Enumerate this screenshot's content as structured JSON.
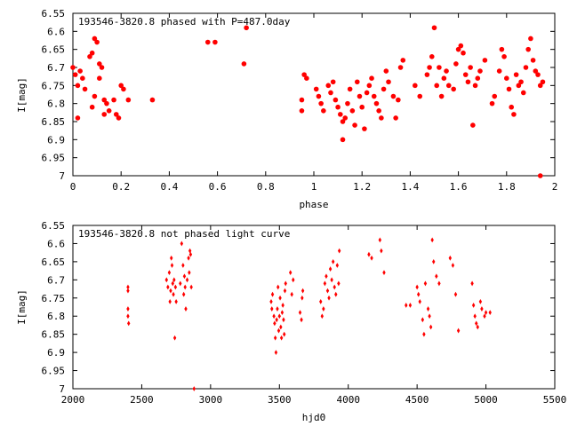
{
  "chart_data": [
    {
      "type": "scatter",
      "title": "193546-3820.8 phased with P=487.0day",
      "xlabel": "phase",
      "ylabel": "I[mag]",
      "xlim": [
        0,
        2
      ],
      "ylim": [
        6.55,
        7
      ],
      "y_inverted": true,
      "grid": false,
      "marker_color": "#ff0000",
      "x_ticks": [
        0,
        0.2,
        0.4,
        0.6,
        0.8,
        1,
        1.2,
        1.4,
        1.6,
        1.8,
        2
      ],
      "y_ticks": [
        6.55,
        6.6,
        6.65,
        6.7,
        6.75,
        6.8,
        6.85,
        6.9,
        6.95,
        7
      ],
      "series": [
        {
          "values": [
            [
              0.0,
              6.7
            ],
            [
              0.01,
              6.72
            ],
            [
              0.02,
              6.75
            ],
            [
              0.02,
              6.84
            ],
            [
              0.03,
              6.71
            ],
            [
              0.04,
              6.73
            ],
            [
              0.05,
              6.76
            ],
            [
              0.07,
              6.67
            ],
            [
              0.08,
              6.66
            ],
            [
              0.08,
              6.81
            ],
            [
              0.09,
              6.62
            ],
            [
              0.09,
              6.78
            ],
            [
              0.1,
              6.63
            ],
            [
              0.11,
              6.73
            ],
            [
              0.11,
              6.69
            ],
            [
              0.12,
              6.7
            ],
            [
              0.13,
              6.79
            ],
            [
              0.13,
              6.83
            ],
            [
              0.14,
              6.8
            ],
            [
              0.15,
              6.82
            ],
            [
              0.17,
              6.79
            ],
            [
              0.18,
              6.83
            ],
            [
              0.19,
              6.84
            ],
            [
              0.2,
              6.75
            ],
            [
              0.21,
              6.76
            ],
            [
              0.23,
              6.79
            ],
            [
              0.33,
              6.79
            ],
            [
              0.56,
              6.63
            ],
            [
              0.59,
              6.63
            ],
            [
              0.71,
              6.69
            ],
            [
              0.72,
              6.59
            ],
            [
              0.95,
              6.79
            ],
            [
              0.95,
              6.82
            ],
            [
              0.96,
              6.72
            ],
            [
              0.97,
              6.73
            ],
            [
              1.01,
              6.76
            ],
            [
              1.02,
              6.78
            ],
            [
              1.03,
              6.8
            ],
            [
              1.04,
              6.82
            ],
            [
              1.06,
              6.75
            ],
            [
              1.07,
              6.77
            ],
            [
              1.08,
              6.74
            ],
            [
              1.09,
              6.79
            ],
            [
              1.1,
              6.81
            ],
            [
              1.11,
              6.83
            ],
            [
              1.12,
              6.85
            ],
            [
              1.12,
              6.9
            ],
            [
              1.13,
              6.84
            ],
            [
              1.14,
              6.8
            ],
            [
              1.15,
              6.76
            ],
            [
              1.16,
              6.82
            ],
            [
              1.17,
              6.86
            ],
            [
              1.18,
              6.74
            ],
            [
              1.19,
              6.78
            ],
            [
              1.2,
              6.81
            ],
            [
              1.21,
              6.87
            ],
            [
              1.22,
              6.77
            ],
            [
              1.23,
              6.75
            ],
            [
              1.24,
              6.73
            ],
            [
              1.25,
              6.78
            ],
            [
              1.26,
              6.8
            ],
            [
              1.27,
              6.82
            ],
            [
              1.28,
              6.84
            ],
            [
              1.29,
              6.76
            ],
            [
              1.3,
              6.71
            ],
            [
              1.31,
              6.74
            ],
            [
              1.33,
              6.78
            ],
            [
              1.34,
              6.84
            ],
            [
              1.35,
              6.79
            ],
            [
              1.36,
              6.7
            ],
            [
              1.37,
              6.68
            ],
            [
              1.42,
              6.75
            ],
            [
              1.44,
              6.78
            ],
            [
              1.47,
              6.72
            ],
            [
              1.48,
              6.7
            ],
            [
              1.49,
              6.67
            ],
            [
              1.5,
              6.59
            ],
            [
              1.51,
              6.75
            ],
            [
              1.52,
              6.7
            ],
            [
              1.53,
              6.78
            ],
            [
              1.54,
              6.73
            ],
            [
              1.55,
              6.71
            ],
            [
              1.56,
              6.75
            ],
            [
              1.58,
              6.76
            ],
            [
              1.59,
              6.69
            ],
            [
              1.6,
              6.65
            ],
            [
              1.61,
              6.64
            ],
            [
              1.62,
              6.66
            ],
            [
              1.63,
              6.72
            ],
            [
              1.64,
              6.74
            ],
            [
              1.65,
              6.7
            ],
            [
              1.66,
              6.86
            ],
            [
              1.67,
              6.75
            ],
            [
              1.68,
              6.73
            ],
            [
              1.69,
              6.71
            ],
            [
              1.71,
              6.68
            ],
            [
              1.74,
              6.8
            ],
            [
              1.75,
              6.78
            ],
            [
              1.77,
              6.71
            ],
            [
              1.78,
              6.65
            ],
            [
              1.79,
              6.67
            ],
            [
              1.8,
              6.73
            ],
            [
              1.81,
              6.76
            ],
            [
              1.82,
              6.81
            ],
            [
              1.83,
              6.83
            ],
            [
              1.84,
              6.72
            ],
            [
              1.85,
              6.75
            ],
            [
              1.86,
              6.74
            ],
            [
              1.87,
              6.77
            ],
            [
              1.88,
              6.7
            ],
            [
              1.89,
              6.65
            ],
            [
              1.9,
              6.62
            ],
            [
              1.91,
              6.68
            ],
            [
              1.92,
              6.71
            ],
            [
              1.93,
              6.72
            ],
            [
              1.94,
              6.75
            ],
            [
              1.95,
              6.74
            ],
            [
              1.94,
              7.0
            ]
          ]
        }
      ]
    },
    {
      "type": "scatter",
      "title": "193546-3820.8 not phased light curve",
      "xlabel": "hjd0",
      "ylabel": "I[mag]",
      "xlim": [
        2000,
        5500
      ],
      "ylim": [
        6.55,
        7
      ],
      "y_inverted": true,
      "grid": false,
      "marker_color": "#ff0000",
      "x_ticks": [
        2000,
        2500,
        3000,
        3500,
        4000,
        4500,
        5000,
        5500
      ],
      "y_ticks": [
        6.55,
        6.6,
        6.65,
        6.7,
        6.75,
        6.8,
        6.85,
        6.9,
        6.95,
        7
      ],
      "series": [
        {
          "values": [
            [
              2400,
              6.72
            ],
            [
              2400,
              6.73
            ],
            [
              2400,
              6.78
            ],
            [
              2400,
              6.8
            ],
            [
              2405,
              6.82
            ],
            [
              2680,
              6.7
            ],
            [
              2690,
              6.72
            ],
            [
              2700,
              6.68
            ],
            [
              2705,
              6.76
            ],
            [
              2710,
              6.73
            ],
            [
              2715,
              6.64
            ],
            [
              2720,
              6.66
            ],
            [
              2725,
              6.71
            ],
            [
              2730,
              6.74
            ],
            [
              2735,
              6.7
            ],
            [
              2740,
              6.86
            ],
            [
              2745,
              6.72
            ],
            [
              2750,
              6.76
            ],
            [
              2780,
              6.71
            ],
            [
              2790,
              6.6
            ],
            [
              2800,
              6.66
            ],
            [
              2805,
              6.74
            ],
            [
              2810,
              6.69
            ],
            [
              2815,
              6.72
            ],
            [
              2820,
              6.78
            ],
            [
              2830,
              6.7
            ],
            [
              2840,
              6.64
            ],
            [
              2845,
              6.68
            ],
            [
              2850,
              6.62
            ],
            [
              2855,
              6.63
            ],
            [
              2860,
              6.72
            ],
            [
              2880,
              7.0
            ],
            [
              3440,
              6.76
            ],
            [
              3445,
              6.78
            ],
            [
              3450,
              6.74
            ],
            [
              3460,
              6.8
            ],
            [
              3465,
              6.82
            ],
            [
              3470,
              6.86
            ],
            [
              3475,
              6.9
            ],
            [
              3480,
              6.81
            ],
            [
              3485,
              6.78
            ],
            [
              3490,
              6.72
            ],
            [
              3495,
              6.84
            ],
            [
              3500,
              6.8
            ],
            [
              3505,
              6.75
            ],
            [
              3510,
              6.83
            ],
            [
              3515,
              6.86
            ],
            [
              3520,
              6.79
            ],
            [
              3525,
              6.77
            ],
            [
              3530,
              6.81
            ],
            [
              3535,
              6.85
            ],
            [
              3540,
              6.73
            ],
            [
              3545,
              6.71
            ],
            [
              3580,
              6.68
            ],
            [
              3590,
              6.74
            ],
            [
              3600,
              6.7
            ],
            [
              3650,
              6.79
            ],
            [
              3660,
              6.81
            ],
            [
              3665,
              6.75
            ],
            [
              3670,
              6.73
            ],
            [
              3800,
              6.76
            ],
            [
              3810,
              6.8
            ],
            [
              3820,
              6.78
            ],
            [
              3830,
              6.71
            ],
            [
              3840,
              6.69
            ],
            [
              3850,
              6.73
            ],
            [
              3860,
              6.75
            ],
            [
              3870,
              6.67
            ],
            [
              3880,
              6.7
            ],
            [
              3890,
              6.65
            ],
            [
              3900,
              6.72
            ],
            [
              3910,
              6.74
            ],
            [
              3920,
              6.66
            ],
            [
              3930,
              6.71
            ],
            [
              3935,
              6.62
            ],
            [
              4150,
              6.63
            ],
            [
              4170,
              6.64
            ],
            [
              4230,
              6.59
            ],
            [
              4240,
              6.62
            ],
            [
              4260,
              6.68
            ],
            [
              4420,
              6.77
            ],
            [
              4450,
              6.77
            ],
            [
              4500,
              6.72
            ],
            [
              4510,
              6.74
            ],
            [
              4520,
              6.76
            ],
            [
              4540,
              6.81
            ],
            [
              4550,
              6.85
            ],
            [
              4560,
              6.71
            ],
            [
              4580,
              6.78
            ],
            [
              4590,
              6.8
            ],
            [
              4600,
              6.83
            ],
            [
              4610,
              6.59
            ],
            [
              4620,
              6.65
            ],
            [
              4640,
              6.69
            ],
            [
              4660,
              6.71
            ],
            [
              4740,
              6.64
            ],
            [
              4760,
              6.66
            ],
            [
              4780,
              6.74
            ],
            [
              4800,
              6.84
            ],
            [
              4900,
              6.71
            ],
            [
              4910,
              6.77
            ],
            [
              4920,
              6.8
            ],
            [
              4930,
              6.82
            ],
            [
              4940,
              6.83
            ],
            [
              4960,
              6.76
            ],
            [
              4970,
              6.78
            ],
            [
              4990,
              6.8
            ],
            [
              5000,
              6.79
            ],
            [
              5030,
              6.79
            ]
          ]
        }
      ]
    }
  ]
}
